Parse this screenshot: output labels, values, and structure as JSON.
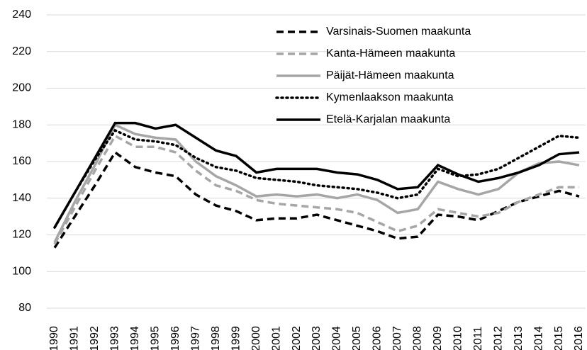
{
  "chart_data": {
    "type": "line",
    "x": [
      "1990",
      "1991",
      "1992",
      "1993",
      "1994",
      "1995",
      "1996",
      "1997",
      "1998",
      "1999",
      "2000",
      "2001",
      "2002",
      "2003",
      "2004",
      "2005",
      "2006",
      "2007",
      "2008",
      "2009",
      "2010",
      "2011",
      "2012",
      "2013",
      "2014",
      "2015",
      "2016"
    ],
    "ylim": [
      80,
      240
    ],
    "yticks": [
      80,
      100,
      120,
      140,
      160,
      180,
      200,
      220,
      240
    ],
    "grid": true,
    "series": [
      {
        "name": "Varsinais-Suomen maakunta",
        "color": "#000000",
        "style": "dashed",
        "values": [
          113,
          130,
          147,
          165,
          157,
          154,
          152,
          142,
          136,
          133,
          128,
          129,
          129,
          131,
          128,
          125,
          122,
          118,
          119,
          131,
          130,
          128,
          133,
          138,
          141,
          144,
          141
        ]
      },
      {
        "name": "Kanta-Hämeen maakunta",
        "color": "#a6a6a6",
        "style": "dashed",
        "values": [
          115,
          135,
          155,
          174,
          168,
          168,
          165,
          155,
          147,
          144,
          139,
          137,
          136,
          135,
          134,
          132,
          127,
          122,
          125,
          134,
          132,
          130,
          132,
          138,
          142,
          146,
          146
        ]
      },
      {
        "name": "Päijät-Hämeen maakunta",
        "color": "#a6a6a6",
        "style": "solid",
        "values": [
          116,
          138,
          158,
          180,
          175,
          173,
          172,
          160,
          152,
          147,
          141,
          142,
          141,
          142,
          140,
          142,
          139,
          132,
          134,
          149,
          145,
          142,
          145,
          154,
          159,
          160,
          158
        ]
      },
      {
        "name": "Kymenlaakson maakunta",
        "color": "#000000",
        "style": "dotted",
        "values": [
          124,
          143,
          161,
          177,
          172,
          171,
          169,
          162,
          157,
          155,
          151,
          150,
          149,
          147,
          146,
          145,
          143,
          140,
          142,
          156,
          152,
          153,
          156,
          162,
          168,
          174,
          173
        ]
      },
      {
        "name": "Etelä-Karjalan maakunta",
        "color": "#000000",
        "style": "solid",
        "values": [
          124,
          143,
          162,
          181,
          181,
          178,
          180,
          173,
          166,
          163,
          154,
          156,
          156,
          156,
          154,
          153,
          150,
          145,
          146,
          158,
          153,
          149,
          151,
          154,
          158,
          164,
          165
        ]
      }
    ]
  }
}
